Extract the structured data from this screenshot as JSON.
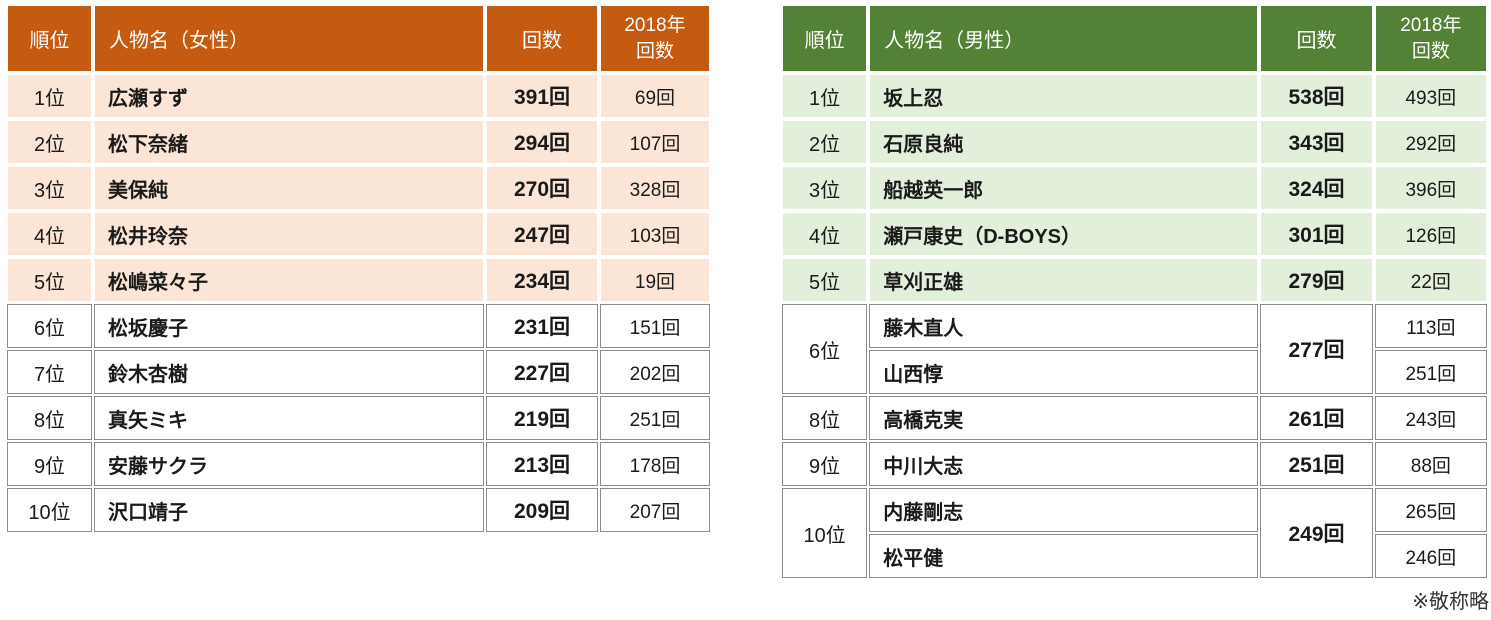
{
  "footnote": "※敬称略",
  "colors": {
    "women_header_bg": "#C55A11",
    "women_tint_bg": "#FBE5D6",
    "men_header_bg": "#538135",
    "men_tint_bg": "#E2EFDA",
    "grid_line": "#8C8C8C",
    "header_text": "#FFFFFF"
  },
  "women": {
    "headers": {
      "rank": "順位",
      "name": "人物名（女性）",
      "count": "回数",
      "count2018": "2018年\n回数"
    },
    "rows": [
      {
        "rank": "1位",
        "name": "広瀬すず",
        "count": "391回",
        "count2018": "69回"
      },
      {
        "rank": "2位",
        "name": "松下奈緒",
        "count": "294回",
        "count2018": "107回"
      },
      {
        "rank": "3位",
        "name": "美保純",
        "count": "270回",
        "count2018": "328回"
      },
      {
        "rank": "4位",
        "name": "松井玲奈",
        "count": "247回",
        "count2018": "103回"
      },
      {
        "rank": "5位",
        "name": "松嶋菜々子",
        "count": "234回",
        "count2018": "19回"
      },
      {
        "rank": "6位",
        "name": "松坂慶子",
        "count": "231回",
        "count2018": "151回"
      },
      {
        "rank": "7位",
        "name": "鈴木杏樹",
        "count": "227回",
        "count2018": "202回"
      },
      {
        "rank": "8位",
        "name": "真矢ミキ",
        "count": "219回",
        "count2018": "251回"
      },
      {
        "rank": "9位",
        "name": "安藤サクラ",
        "count": "213回",
        "count2018": "178回"
      },
      {
        "rank": "10位",
        "name": "沢口靖子",
        "count": "209回",
        "count2018": "207回"
      }
    ]
  },
  "men": {
    "headers": {
      "rank": "順位",
      "name": "人物名（男性）",
      "count": "回数",
      "count2018": "2018年\n回数"
    },
    "rows": [
      {
        "rank": "1位",
        "name": "坂上忍",
        "count": "538回",
        "count2018": "493回"
      },
      {
        "rank": "2位",
        "name": "石原良純",
        "count": "343回",
        "count2018": "292回"
      },
      {
        "rank": "3位",
        "name": "船越英一郎",
        "count": "324回",
        "count2018": "396回"
      },
      {
        "rank": "4位",
        "name": "瀬戸康史（D-BOYS）",
        "count": "301回",
        "count2018": "126回"
      },
      {
        "rank": "5位",
        "name": "草刈正雄",
        "count": "279回",
        "count2018": "22回"
      },
      {
        "rank": "6位",
        "name": "藤木直人",
        "count": "277回",
        "count2018": "113回"
      },
      {
        "rank": "",
        "name": "山西惇",
        "count": "",
        "count2018": "251回"
      },
      {
        "rank": "8位",
        "name": "高橋克実",
        "count": "261回",
        "count2018": "243回"
      },
      {
        "rank": "9位",
        "name": "中川大志",
        "count": "251回",
        "count2018": "88回"
      },
      {
        "rank": "10位",
        "name": "内藤剛志",
        "count": "249回",
        "count2018": "265回"
      },
      {
        "rank": "",
        "name": "松平健",
        "count": "",
        "count2018": "246回"
      }
    ]
  },
  "chart_data": [
    {
      "type": "table",
      "title": "人物名（女性）ランキング",
      "columns": [
        "順位",
        "人物名（女性）",
        "回数",
        "2018年回数"
      ],
      "rows": [
        [
          "1位",
          "広瀬すず",
          391,
          69
        ],
        [
          "2位",
          "松下奈緒",
          294,
          107
        ],
        [
          "3位",
          "美保純",
          270,
          328
        ],
        [
          "4位",
          "松井玲奈",
          247,
          103
        ],
        [
          "5位",
          "松嶋菜々子",
          234,
          19
        ],
        [
          "6位",
          "松坂慶子",
          231,
          151
        ],
        [
          "7位",
          "鈴木杏樹",
          227,
          202
        ],
        [
          "8位",
          "真矢ミキ",
          219,
          251
        ],
        [
          "9位",
          "安藤サクラ",
          213,
          178
        ],
        [
          "10位",
          "沢口靖子",
          209,
          207
        ]
      ]
    },
    {
      "type": "table",
      "title": "人物名（男性）ランキング",
      "columns": [
        "順位",
        "人物名（男性）",
        "回数",
        "2018年回数"
      ],
      "rows": [
        [
          "1位",
          "坂上忍",
          538,
          493
        ],
        [
          "2位",
          "石原良純",
          343,
          292
        ],
        [
          "3位",
          "船越英一郎",
          324,
          396
        ],
        [
          "4位",
          "瀬戸康史（D-BOYS）",
          301,
          126
        ],
        [
          "5位",
          "草刈正雄",
          279,
          22
        ],
        [
          "6位",
          "藤木直人",
          277,
          113
        ],
        [
          "6位",
          "山西惇",
          277,
          251
        ],
        [
          "8位",
          "高橋克実",
          261,
          243
        ],
        [
          "9位",
          "中川大志",
          251,
          88
        ],
        [
          "10位",
          "内藤剛志",
          249,
          265
        ],
        [
          "10位",
          "松平健",
          249,
          246
        ]
      ],
      "note": "※敬称略"
    }
  ]
}
